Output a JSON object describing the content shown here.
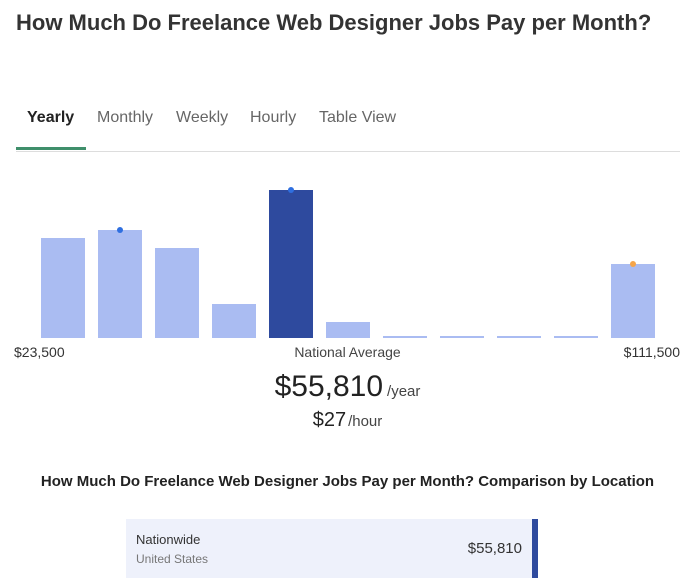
{
  "header": {
    "title": "How Much Do Freelance Web Designer Jobs Pay per Month?"
  },
  "tabs": [
    {
      "label": "Yearly",
      "active": true
    },
    {
      "label": "Monthly",
      "active": false
    },
    {
      "label": "Weekly",
      "active": false
    },
    {
      "label": "Hourly",
      "active": false
    },
    {
      "label": "Table View",
      "active": false
    }
  ],
  "chart_data": {
    "type": "bar",
    "values": [
      100,
      108,
      90,
      34,
      148,
      16,
      2,
      2,
      2,
      2,
      74
    ],
    "highlight_index": 4,
    "markers": [
      {
        "index": 1,
        "color": "#2f6fe0"
      },
      {
        "index": 4,
        "color": "#2f6fe0"
      },
      {
        "index": 10,
        "color": "#f5a54a"
      }
    ],
    "range_min_label": "$23,500",
    "range_max_label": "$111,500",
    "average_label": "National Average",
    "colors": {
      "bar": "#aabcf2",
      "highlight": "#2e4a9e"
    }
  },
  "summary": {
    "yearly_value": "$55,810",
    "yearly_unit": "/year",
    "hourly_value": "$27",
    "hourly_unit": "/hour"
  },
  "comparison": {
    "title": "How Much Do Freelance Web Designer Jobs Pay per Month? Comparison by Location",
    "rows": [
      {
        "name": "Nationwide",
        "country": "United States",
        "value": "$55,810"
      }
    ]
  }
}
